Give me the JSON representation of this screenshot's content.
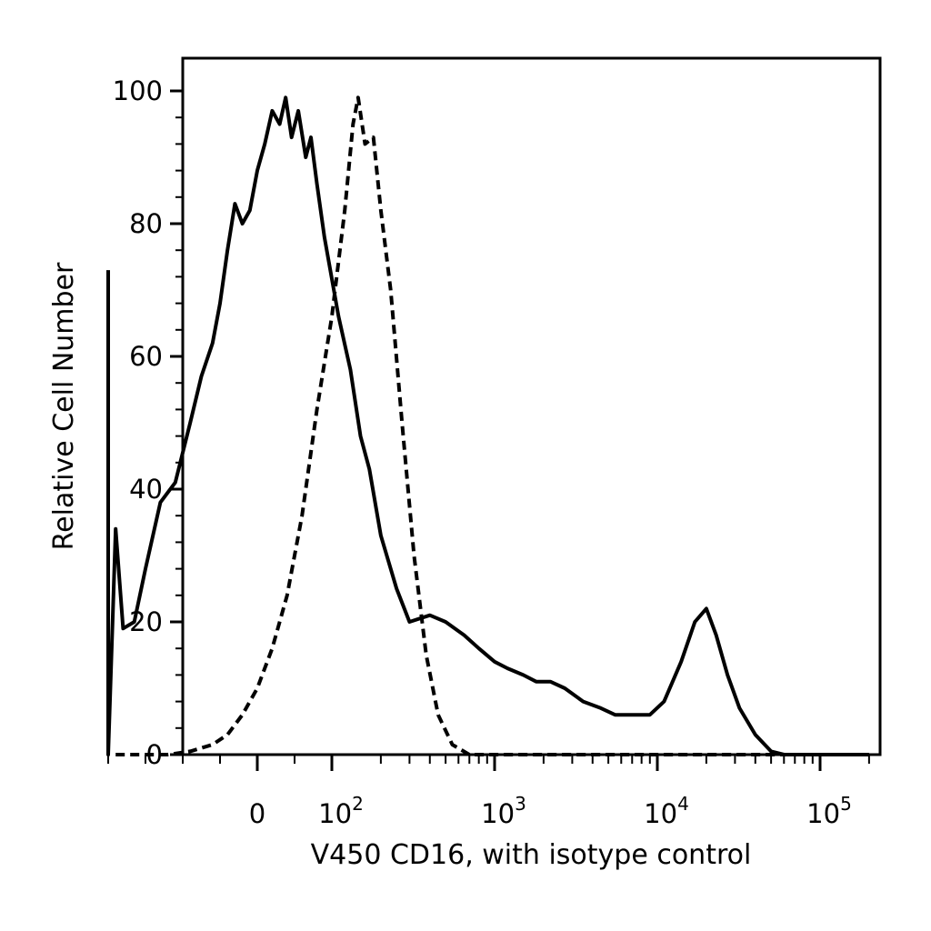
{
  "chart_data": {
    "type": "line",
    "title": "",
    "xlabel": "V450 CD16, with isotype control",
    "ylabel": "Relative Cell Number",
    "x_scale": "biexponential",
    "x_ticks": [
      {
        "label": "0",
        "value": 0
      },
      {
        "base": "10",
        "exp": "2",
        "value": 100
      },
      {
        "base": "10",
        "exp": "3",
        "value": 1000
      },
      {
        "base": "10",
        "exp": "4",
        "value": 10000
      },
      {
        "base": "10",
        "exp": "5",
        "value": 100000
      }
    ],
    "y_ticks": [
      "0",
      "20",
      "40",
      "60",
      "80",
      "100"
    ],
    "ylim": [
      0,
      100
    ],
    "grid": false,
    "legend": "none",
    "series": [
      {
        "style": "solid",
        "color": "#000000",
        "points": [
          [
            -200,
            73
          ],
          [
            -200,
            0
          ],
          [
            -190,
            34
          ],
          [
            -180,
            19
          ],
          [
            -165,
            20
          ],
          [
            -150,
            28
          ],
          [
            -130,
            38
          ],
          [
            -110,
            41
          ],
          [
            -90,
            50
          ],
          [
            -75,
            57
          ],
          [
            -60,
            62
          ],
          [
            -50,
            68
          ],
          [
            -40,
            76
          ],
          [
            -30,
            83
          ],
          [
            -20,
            80
          ],
          [
            -10,
            82
          ],
          [
            0,
            88
          ],
          [
            10,
            92
          ],
          [
            20,
            97
          ],
          [
            30,
            95
          ],
          [
            38,
            99
          ],
          [
            46,
            93
          ],
          [
            55,
            97
          ],
          [
            65,
            90
          ],
          [
            72,
            93
          ],
          [
            80,
            86
          ],
          [
            90,
            78
          ],
          [
            110,
            66
          ],
          [
            130,
            58
          ],
          [
            150,
            48
          ],
          [
            170,
            43
          ],
          [
            200,
            33
          ],
          [
            250,
            25
          ],
          [
            300,
            20
          ],
          [
            400,
            21
          ],
          [
            500,
            20
          ],
          [
            650,
            18
          ],
          [
            800,
            16
          ],
          [
            1000,
            14
          ],
          [
            1200,
            13
          ],
          [
            1500,
            12
          ],
          [
            1800,
            11
          ],
          [
            2200,
            11
          ],
          [
            2700,
            10
          ],
          [
            3500,
            8
          ],
          [
            4500,
            7
          ],
          [
            5500,
            6
          ],
          [
            7000,
            6
          ],
          [
            9000,
            6
          ],
          [
            11000,
            8
          ],
          [
            14000,
            14
          ],
          [
            17000,
            20
          ],
          [
            20000,
            22
          ],
          [
            23000,
            18
          ],
          [
            27000,
            12
          ],
          [
            32000,
            7
          ],
          [
            40000,
            3
          ],
          [
            50000,
            0.5
          ],
          [
            60000,
            0
          ],
          [
            200000,
            0
          ]
        ]
      },
      {
        "style": "dashed",
        "color": "#000000",
        "points": [
          [
            -190,
            0
          ],
          [
            -120,
            0
          ],
          [
            -90,
            0.5
          ],
          [
            -60,
            1.5
          ],
          [
            -40,
            3
          ],
          [
            -20,
            6
          ],
          [
            0,
            10
          ],
          [
            20,
            16
          ],
          [
            40,
            24
          ],
          [
            60,
            36
          ],
          [
            80,
            52
          ],
          [
            100,
            66
          ],
          [
            120,
            82
          ],
          [
            135,
            95
          ],
          [
            145,
            99
          ],
          [
            160,
            92
          ],
          [
            180,
            93
          ],
          [
            200,
            82
          ],
          [
            230,
            70
          ],
          [
            270,
            50
          ],
          [
            320,
            30
          ],
          [
            380,
            15
          ],
          [
            450,
            6
          ],
          [
            550,
            1.5
          ],
          [
            700,
            0
          ],
          [
            200000,
            0
          ]
        ]
      }
    ]
  }
}
